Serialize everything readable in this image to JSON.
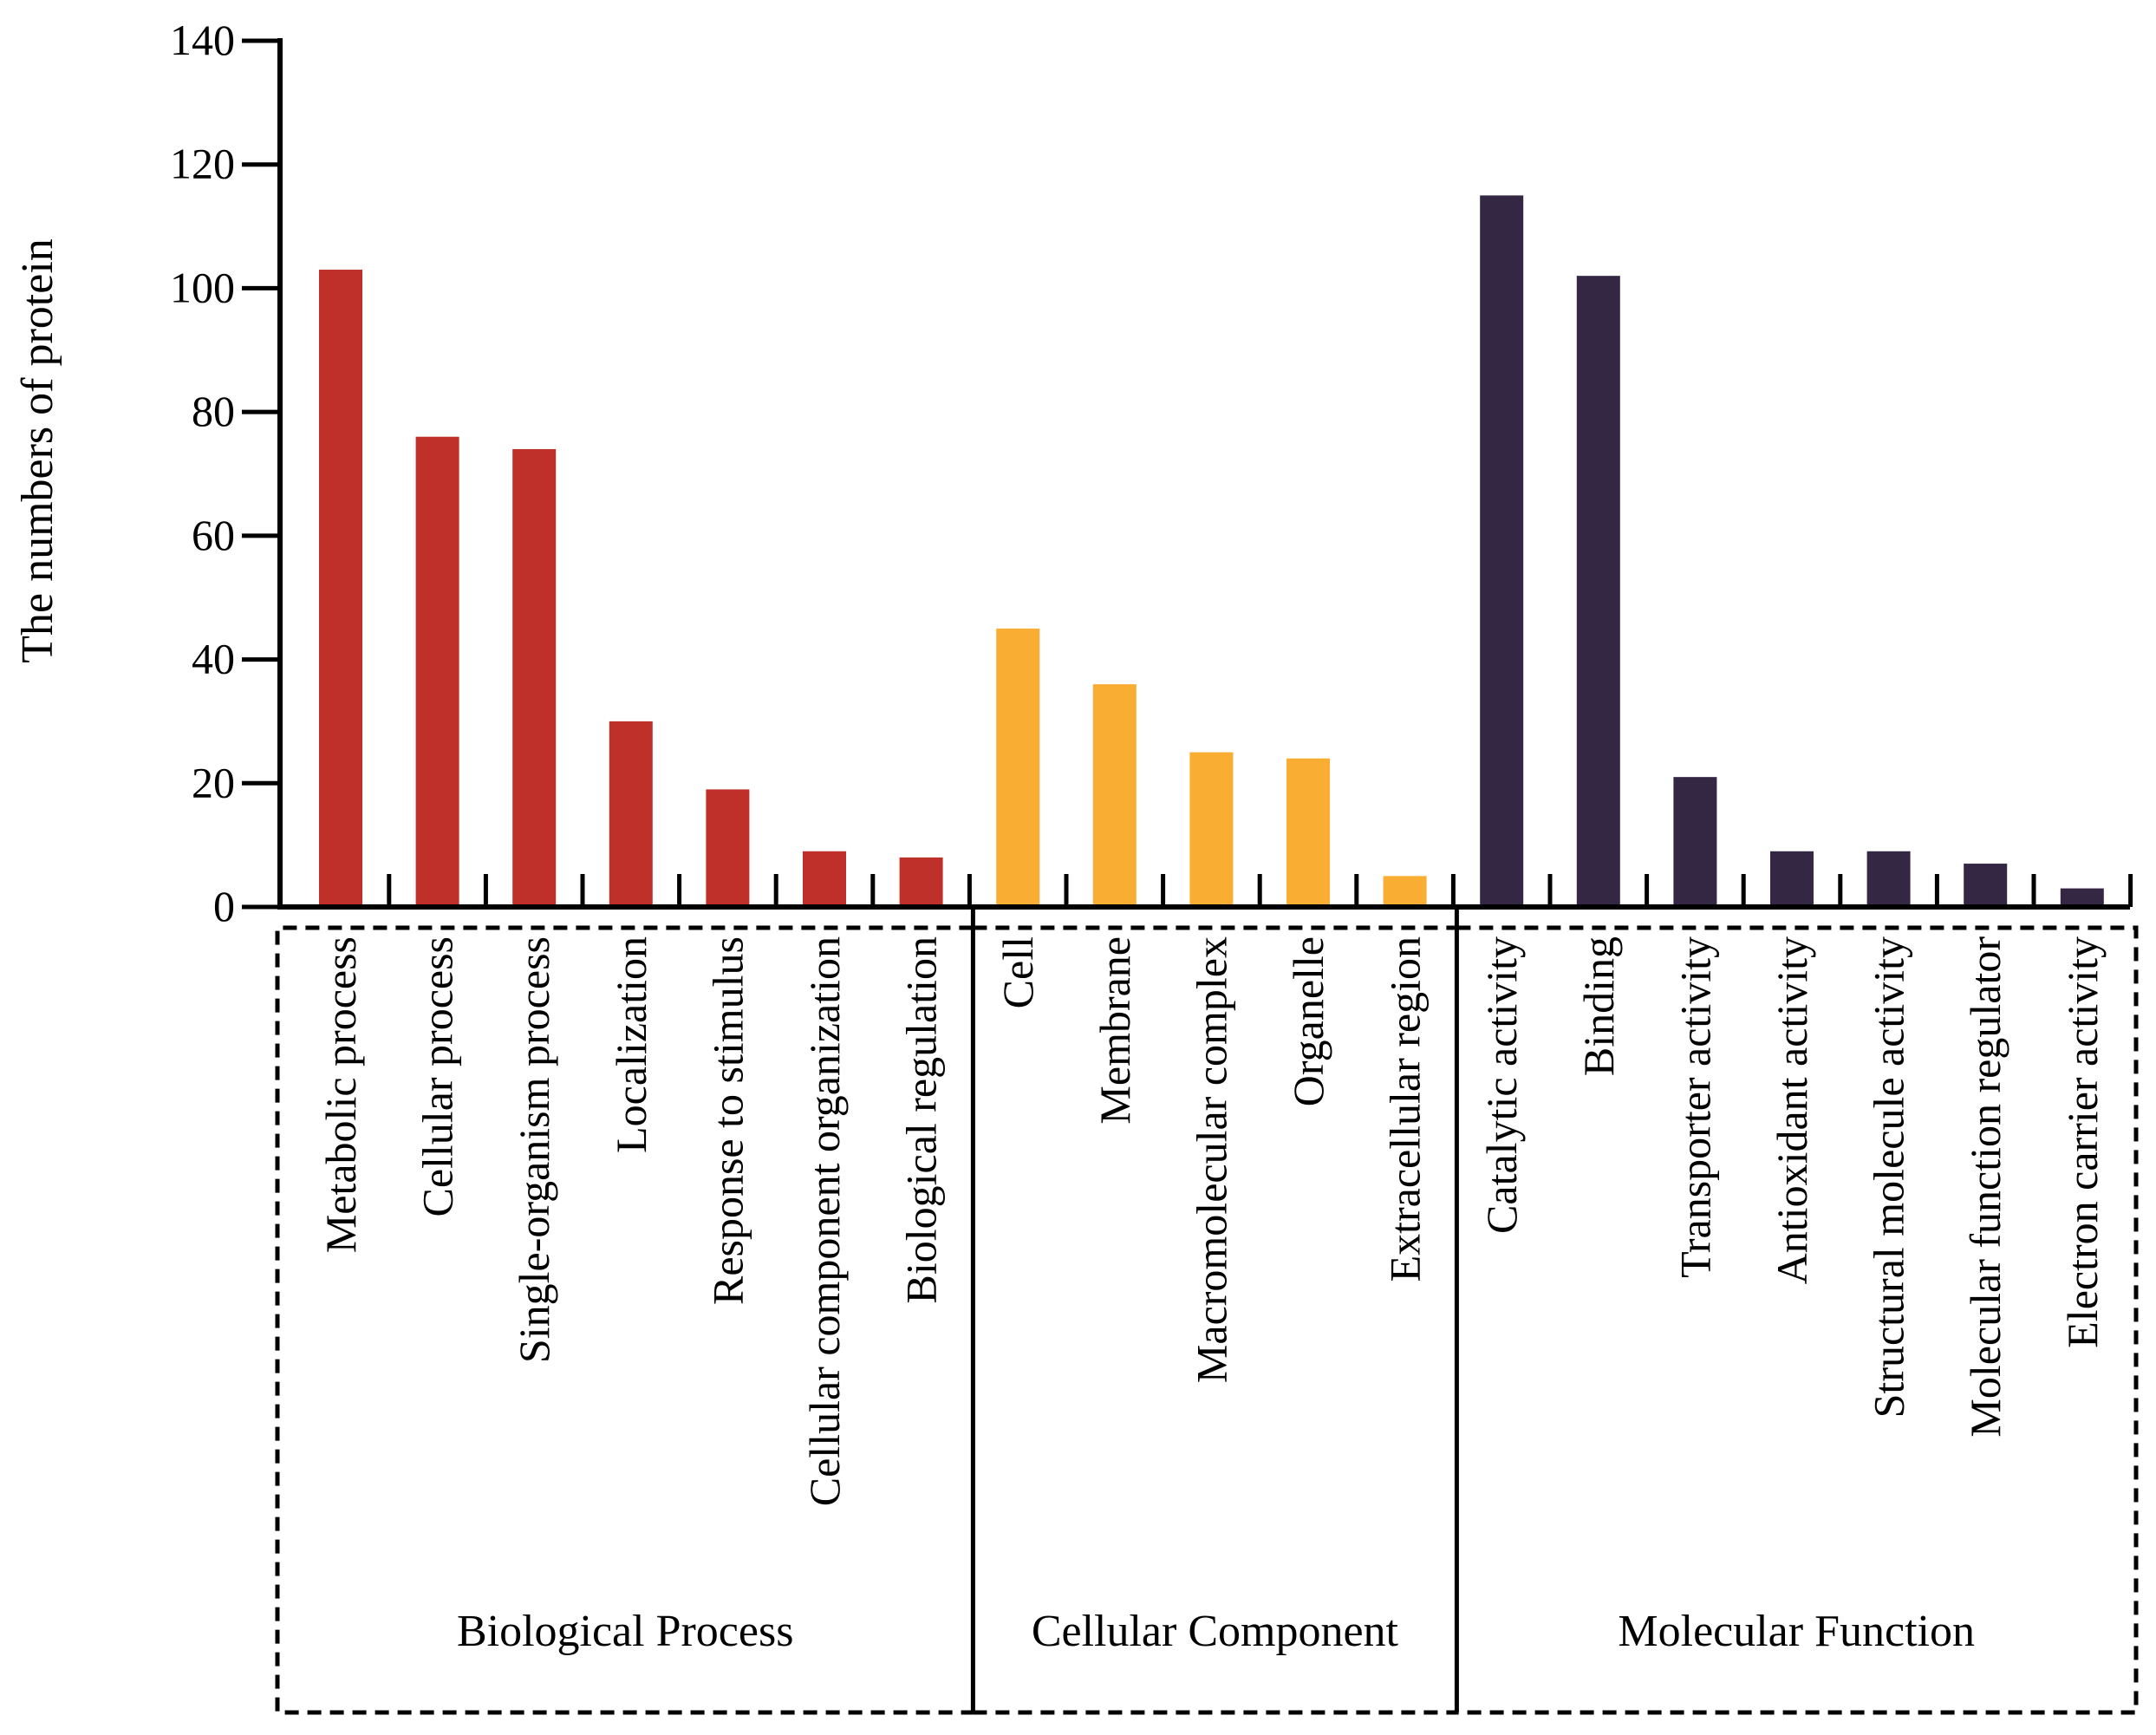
{
  "chart_data": {
    "type": "bar",
    "title": "",
    "xlabel": "",
    "ylabel": "The numbers of  protein",
    "ylim": [
      0,
      140
    ],
    "yticks": [
      0,
      20,
      40,
      60,
      80,
      100,
      120,
      140
    ],
    "grid": false,
    "legend": "none",
    "colors": {
      "bp": "#c0302a",
      "cc": "#f9ae33",
      "mf": "#342743",
      "axis": "#000000"
    },
    "groups": [
      {
        "name": "Biological Process",
        "color_key": "bp",
        "categories": [
          "Metabolic process",
          "Cellular process",
          "Single-organism process",
          "Localization",
          "Response to stimulus",
          "Cellular component organization",
          "Biological regulation"
        ],
        "values": [
          103,
          76,
          74,
          30,
          19,
          9,
          8
        ]
      },
      {
        "name": "Cellular Component",
        "color_key": "cc",
        "categories": [
          "Cell",
          "Membrane",
          "Macromolecular complex",
          "Organelle",
          "Extracellular region"
        ],
        "values": [
          45,
          36,
          25,
          24,
          5
        ]
      },
      {
        "name": "Molecular Function",
        "color_key": "mf",
        "categories": [
          "Catalytic activity",
          "Binding",
          "Transporter activity",
          "Antioxidant activity",
          "Structural molecule activity",
          "Molecular function regulator",
          "Electron carrier activity"
        ],
        "values": [
          115,
          102,
          21,
          9,
          9,
          7,
          3
        ]
      }
    ]
  }
}
